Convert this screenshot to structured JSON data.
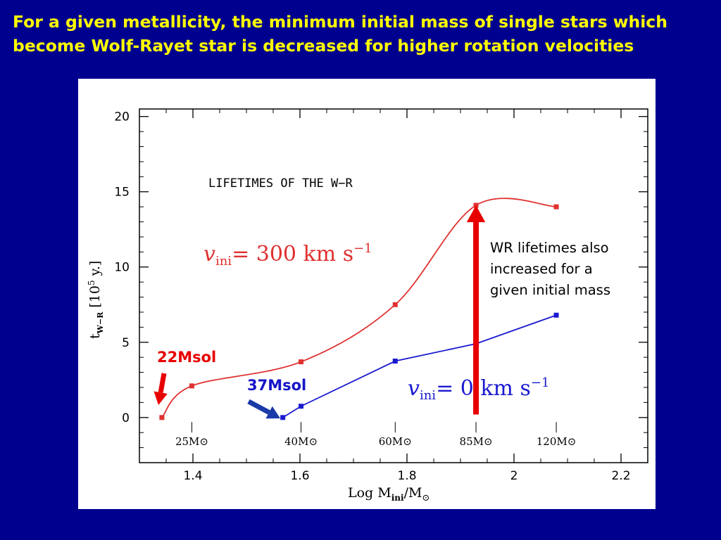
{
  "slide": {
    "title_line1": "For a given metallicity, the minimum initial mass of single stars which",
    "title_line2": "become Wolf-Rayet star is decreased  for higher rotation velocities",
    "callout_line1": "WR lifetimes also",
    "callout_line2": "increased for a",
    "callout_line3": "given initial mass",
    "red_note": "22Msol",
    "blue_note": "37Msol"
  },
  "colors": {
    "background": "#00008f",
    "title": "#ffff00",
    "rotating_series": "#e03030",
    "nonrotating_series": "#1a1ad0",
    "arrow_red": "#e80000",
    "arrow_blue": "#1a3aa8"
  },
  "chart_data": {
    "type": "line",
    "title": "LIFETIMES OF THE W−R",
    "xlabel": "Log M_ini/M_⊙",
    "ylabel": "t_W−R [10^5 y.]",
    "xlim": [
      1.3,
      2.25
    ],
    "ylim": [
      -3,
      20.5
    ],
    "xticks": [
      1.4,
      1.6,
      1.8,
      2,
      2.2
    ],
    "xtick_labels": [
      "1.4",
      "1.6",
      "1.8",
      "2",
      "2.2"
    ],
    "yticks": [
      0,
      5,
      10,
      15,
      20
    ],
    "ytick_labels": [
      "0",
      "5",
      "10",
      "15",
      "20"
    ],
    "mass_markers": [
      {
        "x": 1.398,
        "label": "25M⊙"
      },
      {
        "x": 1.602,
        "label": "40M⊙"
      },
      {
        "x": 1.778,
        "label": "60M⊙"
      },
      {
        "x": 1.929,
        "label": "85M⊙"
      },
      {
        "x": 2.079,
        "label": "120M⊙"
      }
    ],
    "series": [
      {
        "label": "v_ini= 300 km s⁻¹",
        "color": "#e03030",
        "points": [
          [
            1.342,
            0.0
          ],
          [
            1.398,
            2.1
          ],
          [
            1.602,
            3.7
          ],
          [
            1.778,
            7.5
          ],
          [
            1.929,
            14.1
          ],
          [
            2.079,
            14.0
          ]
        ]
      },
      {
        "label": "v_ini= 0 km s⁻¹",
        "color": "#1a1ad0",
        "points": [
          [
            1.568,
            0.0
          ],
          [
            1.602,
            0.75
          ],
          [
            1.778,
            3.75
          ],
          [
            1.929,
            4.9
          ],
          [
            2.079,
            6.8
          ]
        ]
      }
    ],
    "grid": false,
    "legend": "inline labels"
  }
}
